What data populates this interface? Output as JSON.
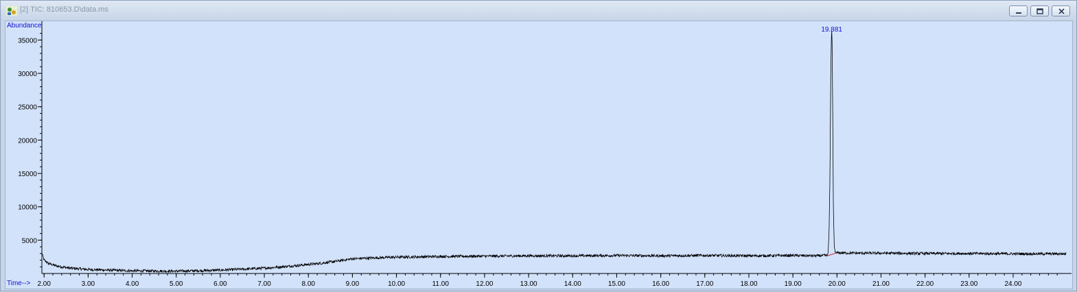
{
  "window": {
    "title": "[2] TIC: 810653.D\\data.ms",
    "controls": [
      "minimize",
      "restore",
      "close"
    ],
    "icon": "chemstation-app-icon"
  },
  "chart_data": {
    "type": "line",
    "ylabel": "Abundance",
    "xlabel": "Time-->",
    "xlim": [
      1.95,
      25.2
    ],
    "ylim": [
      0,
      37200
    ],
    "x_ticks": [
      2.0,
      3.0,
      4.0,
      5.0,
      6.0,
      7.0,
      8.0,
      9.0,
      10.0,
      11.0,
      12.0,
      13.0,
      14.0,
      15.0,
      16.0,
      17.0,
      18.0,
      19.0,
      20.0,
      21.0,
      22.0,
      23.0,
      24.0
    ],
    "x_tick_labels": [
      "2.00",
      "3.00",
      "4.00",
      "5.00",
      "6.00",
      "7.00",
      "8.00",
      "9.00",
      "10.00",
      "11.00",
      "12.00",
      "13.00",
      "14.00",
      "15.00",
      "16.00",
      "17.00",
      "18.00",
      "19.00",
      "20.00",
      "21.00",
      "22.00",
      "23.00",
      "24.00"
    ],
    "y_ticks": [
      5000,
      10000,
      15000,
      20000,
      25000,
      30000,
      35000
    ],
    "y_tick_labels": [
      "5000",
      "10000",
      "15000",
      "20000",
      "25000",
      "30000",
      "35000"
    ],
    "series": [
      {
        "color": "#000000",
        "x": [
          1.95,
          2.0,
          2.1,
          2.3,
          2.6,
          3.0,
          3.5,
          4.0,
          5.0,
          6.0,
          6.5,
          7.0,
          7.5,
          8.0,
          8.3,
          8.6,
          8.8,
          9.0,
          9.5,
          10.0,
          11.0,
          12.0,
          13.0,
          14.0,
          15.0,
          16.0,
          17.0,
          18.0,
          19.0,
          19.5,
          19.78,
          19.8,
          19.82,
          19.84,
          19.85,
          19.86,
          19.87,
          19.881,
          19.89,
          19.9,
          19.91,
          19.92,
          19.94,
          19.96,
          19.98,
          20.0,
          20.05,
          20.5,
          21.0,
          22.0,
          23.0,
          24.0,
          25.0,
          25.2
        ],
        "y": [
          3100,
          2000,
          1500,
          1100,
          800,
          600,
          500,
          400,
          350,
          500,
          650,
          800,
          1050,
          1350,
          1550,
          1800,
          2000,
          2200,
          2350,
          2450,
          2550,
          2600,
          2650,
          2650,
          2700,
          2650,
          2700,
          2650,
          2700,
          2650,
          2700,
          3300,
          6000,
          14000,
          22000,
          30000,
          34500,
          36500,
          34500,
          28000,
          18000,
          9000,
          4000,
          3200,
          3050,
          3100,
          3100,
          3050,
          3050,
          3000,
          3000,
          2950,
          2950,
          2950
        ]
      }
    ],
    "annotations": [
      {
        "text": "19.881",
        "x": 19.881,
        "y": 36500,
        "color": "#1010d0"
      }
    ],
    "baseline": {
      "color": "#d02020",
      "x": [
        19.78,
        19.98
      ],
      "y": [
        2650,
        3050
      ]
    },
    "label_color": "#1010d0",
    "grid": false,
    "background": "#d2e2fb"
  }
}
